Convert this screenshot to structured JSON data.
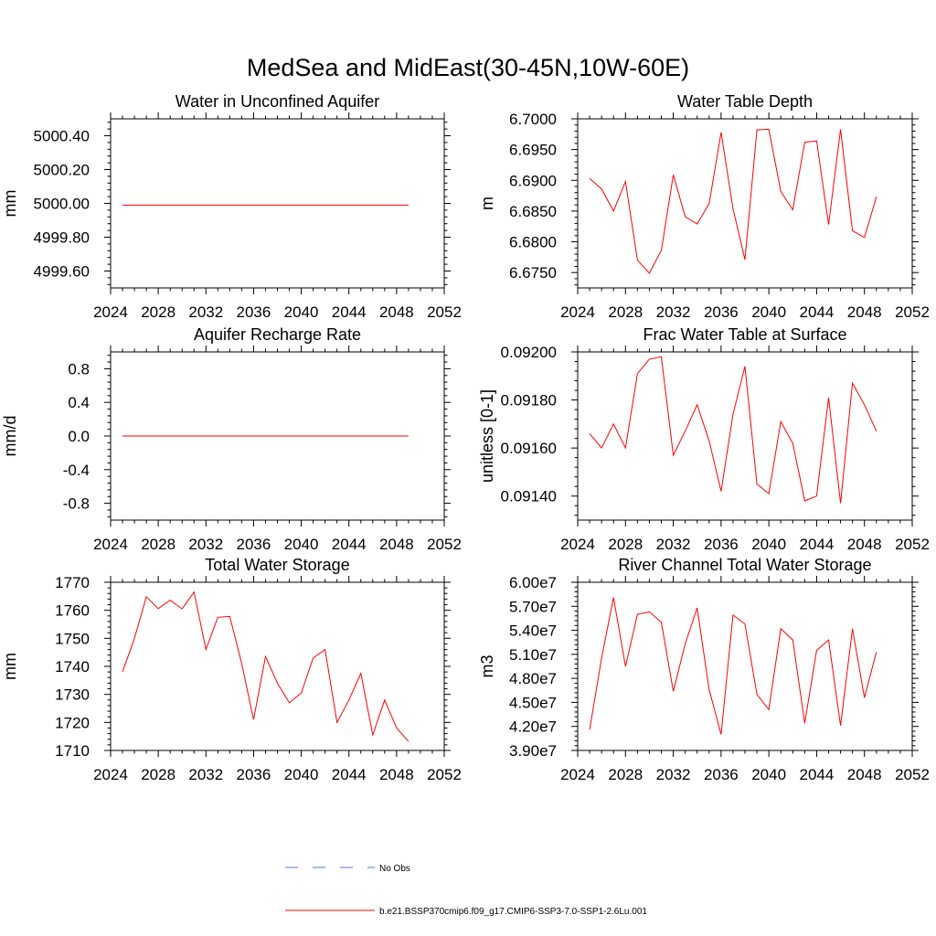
{
  "figure": {
    "title": "MedSea and MidEast(30-45N,10W-60E)"
  },
  "legend": {
    "entries": [
      {
        "label": "No Obs",
        "color": "#5a6fd6",
        "dash": true
      },
      {
        "label": "b.e21.BSSP370cmip6.f09_g17.CMIP6-SSP3-7.0-SSP1-2.6Lu.001",
        "color": "#ff0000",
        "dash": false
      }
    ]
  },
  "chart_data": [
    {
      "type": "line",
      "title": "Water in Unconfined Aquifer",
      "ylabel": "mm",
      "xlim": [
        2024,
        2052
      ],
      "ylim": [
        4999.5,
        5000.5
      ],
      "xticks": [
        2024,
        2028,
        2032,
        2036,
        2040,
        2044,
        2048,
        2052
      ],
      "xtick_labels": [
        "2024",
        "2028",
        "2032",
        "2036",
        "2040",
        "2044",
        "2048",
        "2052"
      ],
      "yticks": [
        4999.6,
        4999.8,
        5000.0,
        5000.2,
        5000.4
      ],
      "ytick_labels": [
        "4999.60",
        "4999.80",
        "5000.00",
        "5000.20",
        "5000.40"
      ],
      "x": [
        2025,
        2026,
        2027,
        2028,
        2029,
        2030,
        2031,
        2032,
        2033,
        2034,
        2035,
        2036,
        2037,
        2038,
        2039,
        2040,
        2041,
        2042,
        2043,
        2044,
        2045,
        2046,
        2047,
        2048,
        2049
      ],
      "series": [
        {
          "color": "#ff0000",
          "values": [
            4999.99,
            4999.99,
            4999.99,
            4999.99,
            4999.99,
            4999.99,
            4999.99,
            4999.99,
            4999.99,
            4999.99,
            4999.99,
            4999.99,
            4999.99,
            4999.99,
            4999.99,
            4999.99,
            4999.99,
            4999.99,
            4999.99,
            4999.99,
            4999.99,
            4999.99,
            4999.99,
            4999.99,
            4999.99
          ]
        }
      ]
    },
    {
      "type": "line",
      "title": "Water Table Depth",
      "ylabel": "m",
      "xlim": [
        2024,
        2052
      ],
      "ylim": [
        6.6725,
        6.7
      ],
      "xticks": [
        2024,
        2028,
        2032,
        2036,
        2040,
        2044,
        2048,
        2052
      ],
      "xtick_labels": [
        "2024",
        "2028",
        "2032",
        "2036",
        "2040",
        "2044",
        "2048",
        "2052"
      ],
      "yticks": [
        6.675,
        6.68,
        6.685,
        6.69,
        6.695,
        6.7
      ],
      "ytick_labels": [
        "6.6750",
        "6.6800",
        "6.6850",
        "6.6900",
        "6.6950",
        "6.7000"
      ],
      "x": [
        2025,
        2026,
        2027,
        2028,
        2029,
        2030,
        2031,
        2032,
        2033,
        2034,
        2035,
        2036,
        2037,
        2038,
        2039,
        2040,
        2041,
        2042,
        2043,
        2044,
        2045,
        2046,
        2047,
        2048,
        2049
      ],
      "series": [
        {
          "color": "#ff0000",
          "values": [
            6.6903,
            6.6886,
            6.685,
            6.6898,
            6.677,
            6.6749,
            6.6786,
            6.6909,
            6.6841,
            6.6829,
            6.6862,
            6.6978,
            6.6854,
            6.6771,
            6.6982,
            6.6983,
            6.6882,
            6.6852,
            6.6962,
            6.6964,
            6.6828,
            6.6983,
            6.6818,
            6.6807,
            6.6873
          ]
        }
      ]
    },
    {
      "type": "line",
      "title": "Aquifer Recharge Rate",
      "ylabel": "mm/d",
      "xlim": [
        2024,
        2052
      ],
      "ylim": [
        -1.0,
        1.0
      ],
      "xticks": [
        2024,
        2028,
        2032,
        2036,
        2040,
        2044,
        2048,
        2052
      ],
      "xtick_labels": [
        "2024",
        "2028",
        "2032",
        "2036",
        "2040",
        "2044",
        "2048",
        "2052"
      ],
      "yticks": [
        -0.8,
        -0.4,
        0.0,
        0.4,
        0.8
      ],
      "ytick_labels": [
        "-0.8",
        "-0.4",
        "0.0",
        "0.4",
        "0.8"
      ],
      "x": [
        2025,
        2026,
        2027,
        2028,
        2029,
        2030,
        2031,
        2032,
        2033,
        2034,
        2035,
        2036,
        2037,
        2038,
        2039,
        2040,
        2041,
        2042,
        2043,
        2044,
        2045,
        2046,
        2047,
        2048,
        2049
      ],
      "series": [
        {
          "color": "#ff0000",
          "values": [
            0,
            0,
            0,
            0,
            0,
            0,
            0,
            0,
            0,
            0,
            0,
            0,
            0,
            0,
            0,
            0,
            0,
            0,
            0,
            0,
            0,
            0,
            0,
            0,
            0
          ]
        }
      ]
    },
    {
      "type": "line",
      "title": "Frac Water Table at Surface",
      "ylabel": "unitless [0-1]",
      "xlim": [
        2024,
        2052
      ],
      "ylim": [
        0.0913,
        0.092
      ],
      "xticks": [
        2024,
        2028,
        2032,
        2036,
        2040,
        2044,
        2048,
        2052
      ],
      "xtick_labels": [
        "2024",
        "2028",
        "2032",
        "2036",
        "2040",
        "2044",
        "2048",
        "2052"
      ],
      "yticks": [
        0.0914,
        0.0916,
        0.0918,
        0.092
      ],
      "ytick_labels": [
        "0.09140",
        "0.09160",
        "0.09180",
        "0.09200"
      ],
      "x": [
        2025,
        2026,
        2027,
        2028,
        2029,
        2030,
        2031,
        2032,
        2033,
        2034,
        2035,
        2036,
        2037,
        2038,
        2039,
        2040,
        2041,
        2042,
        2043,
        2044,
        2045,
        2046,
        2047,
        2048,
        2049
      ],
      "series": [
        {
          "color": "#ff0000",
          "values": [
            0.09166,
            0.0916,
            0.0917,
            0.0916,
            0.09191,
            0.09197,
            0.09198,
            0.09157,
            0.09167,
            0.09178,
            0.09163,
            0.09142,
            0.09174,
            0.09194,
            0.09145,
            0.09141,
            0.09171,
            0.09162,
            0.09138,
            0.0914,
            0.09181,
            0.09137,
            0.09187,
            0.09178,
            0.09167
          ]
        }
      ]
    },
    {
      "type": "line",
      "title": "Total Water Storage",
      "ylabel": "mm",
      "xlim": [
        2024,
        2052
      ],
      "ylim": [
        1710,
        1770
      ],
      "xticks": [
        2024,
        2028,
        2032,
        2036,
        2040,
        2044,
        2048,
        2052
      ],
      "xtick_labels": [
        "2024",
        "2028",
        "2032",
        "2036",
        "2040",
        "2044",
        "2048",
        "2052"
      ],
      "yticks": [
        1710,
        1720,
        1730,
        1740,
        1750,
        1760,
        1770
      ],
      "ytick_labels": [
        "1710",
        "1720",
        "1730",
        "1740",
        "1750",
        "1760",
        "1770"
      ],
      "x": [
        2025,
        2026,
        2027,
        2028,
        2029,
        2030,
        2031,
        2032,
        2033,
        2034,
        2035,
        2036,
        2037,
        2038,
        2039,
        2040,
        2041,
        2042,
        2043,
        2044,
        2045,
        2046,
        2047,
        2048,
        2049
      ],
      "series": [
        {
          "color": "#ff0000",
          "values": [
            1738.0,
            1750.0,
            1764.8,
            1760.6,
            1763.6,
            1760.5,
            1766.5,
            1746.0,
            1757.5,
            1757.8,
            1741.0,
            1721.0,
            1743.5,
            1734.0,
            1727.0,
            1730.5,
            1743.0,
            1746.0,
            1720.0,
            1728.0,
            1737.5,
            1715.5,
            1728.0,
            1718.0,
            1713.2
          ]
        }
      ]
    },
    {
      "type": "line",
      "title": "River Channel Total Water Storage",
      "ylabel": "m3",
      "xlim": [
        2024,
        2052
      ],
      "ylim": [
        39000000,
        60000000
      ],
      "xticks": [
        2024,
        2028,
        2032,
        2036,
        2040,
        2044,
        2048,
        2052
      ],
      "xtick_labels": [
        "2024",
        "2028",
        "2032",
        "2036",
        "2040",
        "2044",
        "2048",
        "2052"
      ],
      "yticks": [
        39000000,
        42000000,
        45000000,
        48000000,
        51000000,
        54000000,
        57000000,
        60000000
      ],
      "ytick_labels": [
        "3.90e7",
        "4.20e7",
        "4.50e7",
        "4.80e7",
        "5.10e7",
        "5.40e7",
        "5.70e7",
        "6.00e7"
      ],
      "x": [
        2025,
        2026,
        2027,
        2028,
        2029,
        2030,
        2031,
        2032,
        2033,
        2034,
        2035,
        2036,
        2037,
        2038,
        2039,
        2040,
        2041,
        2042,
        2043,
        2044,
        2045,
        2046,
        2047,
        2048,
        2049
      ],
      "series": [
        {
          "color": "#ff0000",
          "values": [
            41600000,
            50500000,
            58100000,
            49500000,
            56000000,
            56300000,
            55000000,
            46400000,
            52300000,
            56800000,
            46600000,
            41000000,
            55900000,
            54800000,
            46000000,
            44100000,
            54200000,
            52800000,
            42400000,
            51500000,
            52800000,
            42100000,
            54200000,
            45600000,
            51300000
          ]
        }
      ]
    }
  ]
}
